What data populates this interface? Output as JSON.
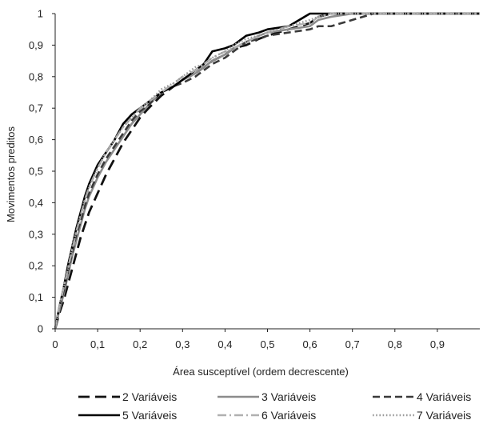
{
  "chart_data": {
    "type": "line",
    "title": "",
    "xlabel": "Área susceptível (ordem  decrescente)",
    "ylabel": "Movimentos preditos",
    "xlim": [
      0,
      1
    ],
    "ylim": [
      0,
      1
    ],
    "x_ticks": [
      "0",
      "0,1",
      "0,2",
      "0,3",
      "0,4",
      "0,5",
      "0,6",
      "0,7",
      "0,8",
      "0,9"
    ],
    "y_ticks": [
      "0",
      "0,1",
      "0,2",
      "0,3",
      "0,4",
      "0,5",
      "0,6",
      "0,7",
      "0,8",
      "0,9",
      "1"
    ],
    "grid": false,
    "legend_position": "bottom",
    "series": [
      {
        "name": "2 Variáveis",
        "color": "#111111",
        "style": "long-dash",
        "x": [
          0,
          0.01,
          0.02,
          0.03,
          0.04,
          0.05,
          0.06,
          0.07,
          0.08,
          0.09,
          0.1,
          0.12,
          0.14,
          0.16,
          0.18,
          0.2,
          0.22,
          0.25,
          0.28,
          0.3,
          0.33,
          0.35,
          0.37,
          0.4,
          0.42,
          0.45,
          0.48,
          0.5,
          0.55,
          0.6,
          0.62,
          0.65,
          0.7,
          0.75,
          0.8,
          0.9,
          1.0
        ],
        "y": [
          0,
          0.05,
          0.09,
          0.14,
          0.19,
          0.24,
          0.29,
          0.33,
          0.37,
          0.4,
          0.43,
          0.49,
          0.54,
          0.59,
          0.63,
          0.67,
          0.7,
          0.74,
          0.77,
          0.79,
          0.81,
          0.83,
          0.85,
          0.87,
          0.89,
          0.9,
          0.92,
          0.93,
          0.95,
          0.97,
          0.99,
          1.0,
          1.0,
          1.0,
          1.0,
          1.0,
          1.0
        ]
      },
      {
        "name": "3 Variáveis",
        "color": "#8c8c8c",
        "style": "solid",
        "x": [
          0,
          0.01,
          0.02,
          0.03,
          0.04,
          0.05,
          0.06,
          0.07,
          0.08,
          0.09,
          0.1,
          0.12,
          0.14,
          0.16,
          0.18,
          0.2,
          0.22,
          0.25,
          0.28,
          0.3,
          0.33,
          0.35,
          0.37,
          0.4,
          0.42,
          0.45,
          0.48,
          0.5,
          0.55,
          0.6,
          0.62,
          0.65,
          0.7,
          0.75,
          0.8,
          0.9,
          1.0
        ],
        "y": [
          0,
          0.06,
          0.11,
          0.17,
          0.23,
          0.28,
          0.33,
          0.38,
          0.42,
          0.45,
          0.48,
          0.53,
          0.57,
          0.61,
          0.65,
          0.68,
          0.71,
          0.75,
          0.77,
          0.79,
          0.81,
          0.83,
          0.85,
          0.87,
          0.89,
          0.91,
          0.93,
          0.94,
          0.95,
          0.96,
          0.98,
          0.99,
          1.0,
          1.0,
          1.0,
          1.0,
          1.0
        ]
      },
      {
        "name": "4 Variáveis",
        "color": "#3a3a3a",
        "style": "dash",
        "x": [
          0,
          0.01,
          0.02,
          0.03,
          0.04,
          0.05,
          0.06,
          0.07,
          0.08,
          0.09,
          0.1,
          0.12,
          0.14,
          0.16,
          0.18,
          0.2,
          0.22,
          0.25,
          0.28,
          0.3,
          0.33,
          0.35,
          0.37,
          0.4,
          0.42,
          0.45,
          0.48,
          0.5,
          0.55,
          0.6,
          0.62,
          0.65,
          0.7,
          0.75,
          0.8,
          0.9,
          1.0
        ],
        "y": [
          0,
          0.07,
          0.12,
          0.18,
          0.24,
          0.3,
          0.34,
          0.39,
          0.43,
          0.46,
          0.49,
          0.54,
          0.58,
          0.62,
          0.66,
          0.69,
          0.71,
          0.75,
          0.77,
          0.78,
          0.8,
          0.82,
          0.84,
          0.86,
          0.88,
          0.91,
          0.92,
          0.93,
          0.94,
          0.95,
          0.96,
          0.96,
          0.98,
          1.0,
          1.0,
          1.0,
          1.0
        ]
      },
      {
        "name": "5 Variáveis",
        "color": "#000000",
        "style": "solid",
        "x": [
          0,
          0.01,
          0.02,
          0.03,
          0.04,
          0.05,
          0.06,
          0.07,
          0.08,
          0.09,
          0.1,
          0.12,
          0.14,
          0.16,
          0.18,
          0.2,
          0.22,
          0.25,
          0.28,
          0.3,
          0.33,
          0.35,
          0.37,
          0.4,
          0.42,
          0.45,
          0.48,
          0.5,
          0.55,
          0.6,
          0.62,
          0.65,
          0.7,
          0.75,
          0.8,
          0.9,
          1.0
        ],
        "y": [
          0,
          0.07,
          0.13,
          0.2,
          0.26,
          0.32,
          0.37,
          0.42,
          0.46,
          0.49,
          0.52,
          0.56,
          0.6,
          0.65,
          0.68,
          0.7,
          0.72,
          0.75,
          0.77,
          0.79,
          0.82,
          0.84,
          0.88,
          0.89,
          0.9,
          0.93,
          0.94,
          0.95,
          0.96,
          1.0,
          1.0,
          1.0,
          1.0,
          1.0,
          1.0,
          1.0,
          1.0
        ]
      },
      {
        "name": "6 Variáveis",
        "color": "#b0b0b0",
        "style": "dash-dot",
        "x": [
          0,
          0.01,
          0.02,
          0.03,
          0.04,
          0.05,
          0.06,
          0.07,
          0.08,
          0.09,
          0.1,
          0.12,
          0.14,
          0.16,
          0.18,
          0.2,
          0.22,
          0.25,
          0.28,
          0.3,
          0.33,
          0.35,
          0.37,
          0.4,
          0.42,
          0.45,
          0.48,
          0.5,
          0.55,
          0.6,
          0.62,
          0.65,
          0.7,
          0.75,
          0.8,
          0.9,
          1.0
        ],
        "y": [
          0,
          0.07,
          0.13,
          0.19,
          0.25,
          0.31,
          0.36,
          0.41,
          0.45,
          0.48,
          0.51,
          0.56,
          0.6,
          0.64,
          0.67,
          0.7,
          0.72,
          0.75,
          0.78,
          0.8,
          0.82,
          0.84,
          0.86,
          0.88,
          0.89,
          0.91,
          0.93,
          0.94,
          0.96,
          0.97,
          0.99,
          1.0,
          1.0,
          1.0,
          1.0,
          1.0,
          1.0
        ]
      },
      {
        "name": "7 Variáveis",
        "color": "#999999",
        "style": "dot",
        "x": [
          0,
          0.01,
          0.02,
          0.03,
          0.04,
          0.05,
          0.06,
          0.07,
          0.08,
          0.09,
          0.1,
          0.12,
          0.14,
          0.16,
          0.18,
          0.2,
          0.22,
          0.25,
          0.28,
          0.3,
          0.33,
          0.35,
          0.37,
          0.4,
          0.42,
          0.45,
          0.48,
          0.5,
          0.55,
          0.6,
          0.62,
          0.65,
          0.7,
          0.75,
          0.8,
          0.9,
          1.0
        ],
        "y": [
          0,
          0.07,
          0.13,
          0.19,
          0.26,
          0.31,
          0.36,
          0.41,
          0.45,
          0.48,
          0.51,
          0.56,
          0.6,
          0.64,
          0.67,
          0.7,
          0.72,
          0.76,
          0.78,
          0.8,
          0.83,
          0.84,
          0.86,
          0.88,
          0.9,
          0.92,
          0.93,
          0.94,
          0.96,
          0.98,
          0.99,
          1.0,
          1.0,
          1.0,
          1.0,
          1.0,
          1.0
        ]
      }
    ]
  }
}
